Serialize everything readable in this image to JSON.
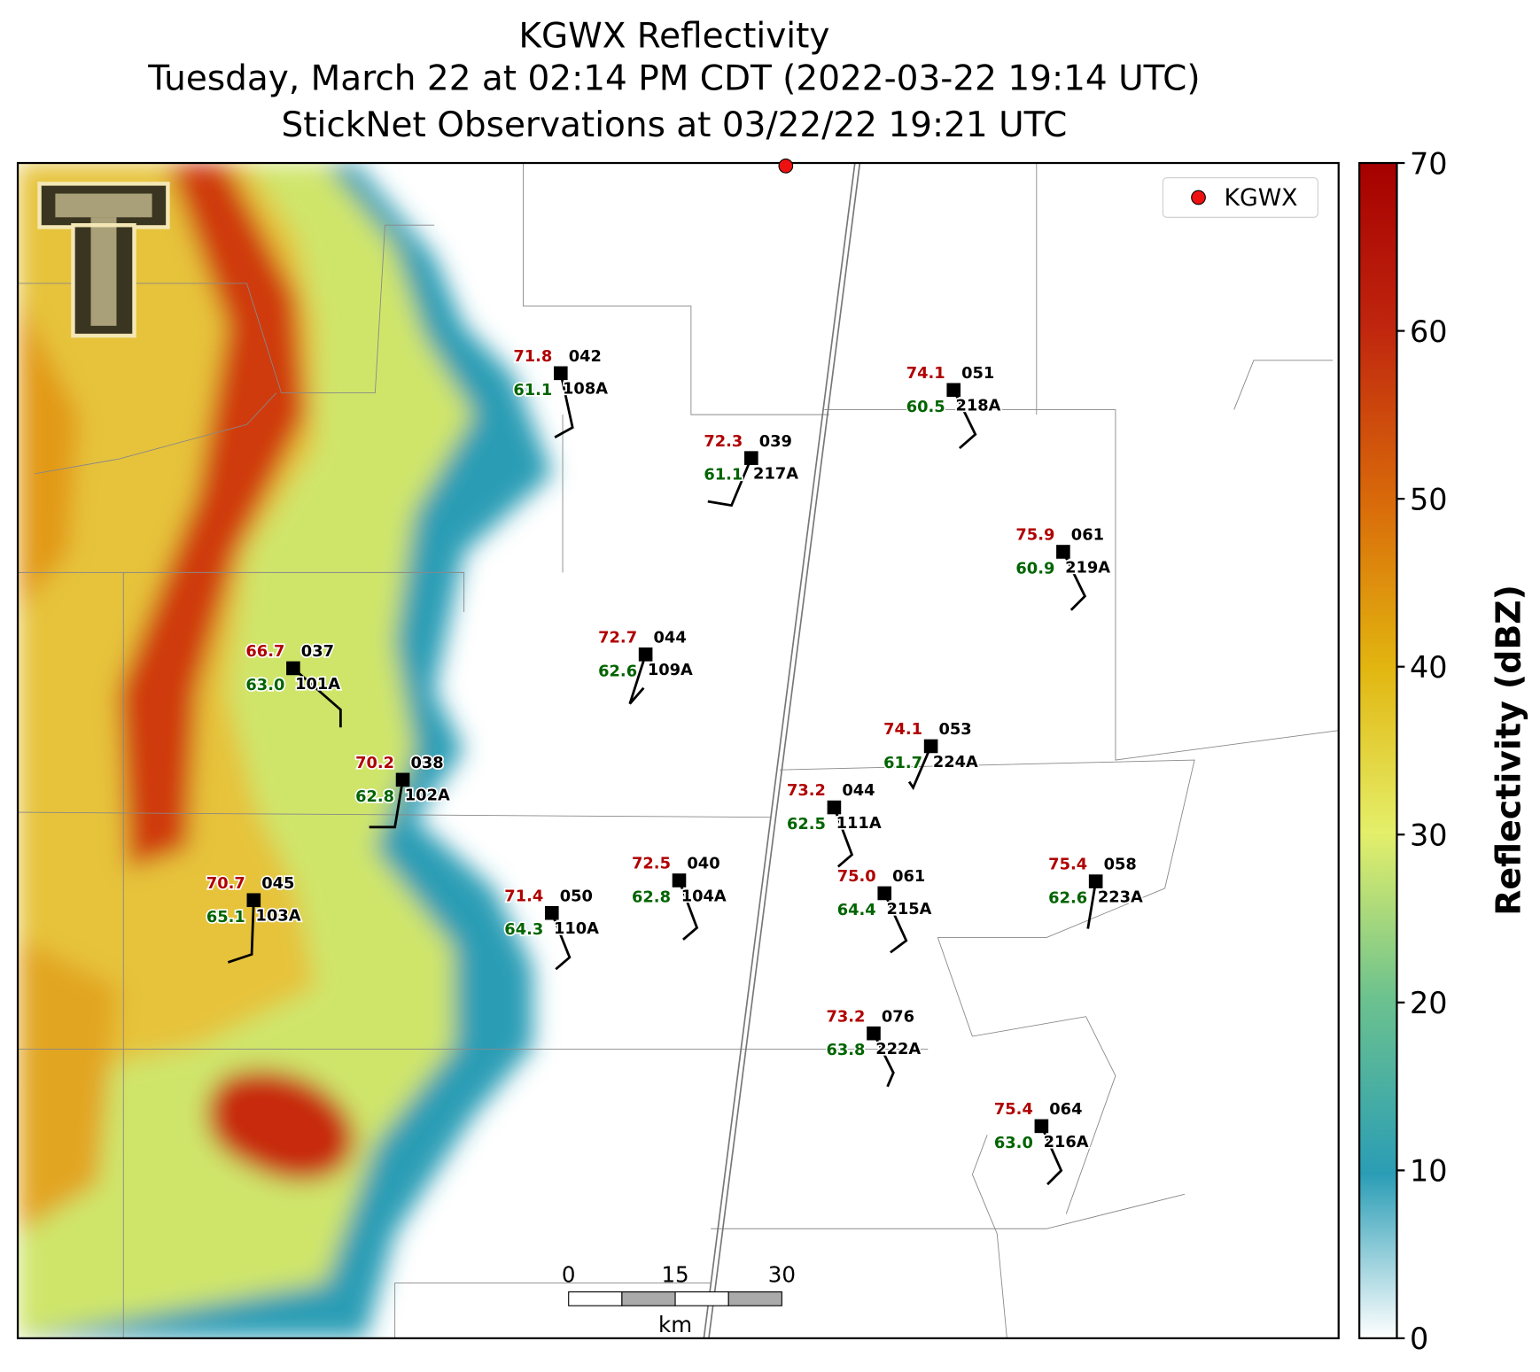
{
  "title": [
    "KGWX Reflectivity",
    "Tuesday, March 22 at 02:14 PM CDT (2022-03-22 19:14 UTC)",
    "StickNet Observations at 03/22/22 19:21 UTC"
  ],
  "legend": "KGWX",
  "colorbar": {
    "label": "Reflectivity (dBZ)",
    "lim": [
      0,
      70
    ],
    "ticks": [
      0,
      10,
      20,
      30,
      40,
      50,
      60,
      70
    ]
  },
  "scale_bar": {
    "labels": [
      "0",
      "15",
      "30"
    ],
    "unit": "km"
  },
  "stations": [
    {
      "id": "108A",
      "temp": "71.8",
      "dew": "61.1",
      "pres": "042"
    },
    {
      "id": "217A",
      "temp": "72.3",
      "dew": "61.1",
      "pres": "039"
    },
    {
      "id": "218A",
      "temp": "74.1",
      "dew": "60.5",
      "pres": "051"
    },
    {
      "id": "219A",
      "temp": "75.9",
      "dew": "60.9",
      "pres": "061"
    },
    {
      "id": "109A",
      "temp": "72.7",
      "dew": "62.6",
      "pres": "044"
    },
    {
      "id": "101A",
      "temp": "66.7",
      "dew": "63.0",
      "pres": "037"
    },
    {
      "id": "224A",
      "temp": "74.1",
      "dew": "61.7",
      "pres": "053"
    },
    {
      "id": "102A",
      "temp": "70.2",
      "dew": "62.8",
      "pres": "038"
    },
    {
      "id": "111A",
      "temp": "73.2",
      "dew": "62.5",
      "pres": "044"
    },
    {
      "id": "104A",
      "temp": "72.5",
      "dew": "62.8",
      "pres": "040"
    },
    {
      "id": "215A",
      "temp": "75.0",
      "dew": "64.4",
      "pres": "061"
    },
    {
      "id": "223A",
      "temp": "75.4",
      "dew": "62.6",
      "pres": "058"
    },
    {
      "id": "103A",
      "temp": "70.7",
      "dew": "65.1",
      "pres": "045"
    },
    {
      "id": "110A",
      "temp": "71.4",
      "dew": "64.3",
      "pres": "050"
    },
    {
      "id": "222A",
      "temp": "73.2",
      "dew": "63.8",
      "pres": "076"
    },
    {
      "id": "216A",
      "temp": "75.4",
      "dew": "63.0",
      "pres": "064"
    }
  ]
}
